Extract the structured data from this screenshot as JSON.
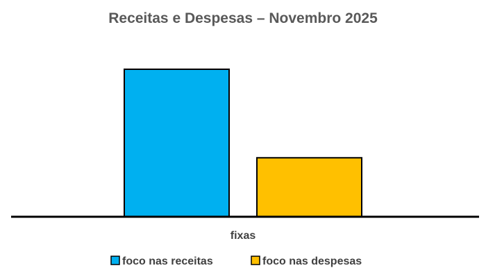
{
  "chart_data": {
    "type": "bar",
    "title": "Receitas e Despesas – Novembro 2025",
    "xlabel": "",
    "ylabel": "",
    "categories": [
      "fixas"
    ],
    "series": [
      {
        "name": "foco nas receitas",
        "color": "#00B0F0",
        "values": [
          100
        ]
      },
      {
        "name": "foco nas despesas",
        "color": "#FFC000",
        "values": [
          40
        ]
      }
    ],
    "ylim": [
      0,
      100
    ],
    "grid": false,
    "legend": "bottom"
  }
}
